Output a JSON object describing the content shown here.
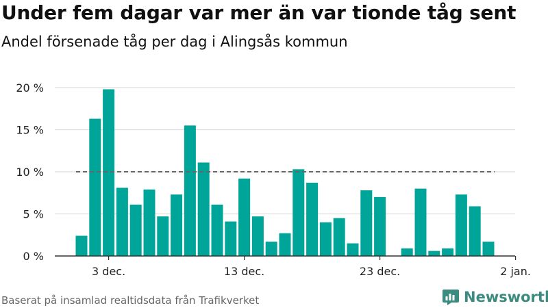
{
  "header": {
    "title": "Under fem dagar var mer än var tionde tåg sent",
    "subtitle": "Andel försenade tåg per dag i Alingsås kommun"
  },
  "footer": {
    "source": "Baserat på insamlad realtidsdata från Trafikverket",
    "brand": "Newsworthy"
  },
  "colors": {
    "bar": "#00a59a",
    "reference_line": "#666666",
    "grid": "#dddddd",
    "brand": "#3c8b80"
  },
  "chart_data": {
    "type": "bar",
    "x": [
      "1 dec.",
      "2 dec.",
      "3 dec.",
      "4 dec.",
      "5 dec.",
      "6 dec.",
      "7 dec.",
      "8 dec.",
      "9 dec.",
      "10 dec.",
      "11 dec.",
      "12 dec.",
      "13 dec.",
      "14 dec.",
      "15 dec.",
      "16 dec.",
      "17 dec.",
      "18 dec.",
      "19 dec.",
      "20 dec.",
      "21 dec.",
      "22 dec.",
      "23 dec.",
      "24 dec.",
      "25 dec.",
      "26 dec.",
      "27 dec.",
      "28 dec.",
      "29 dec.",
      "30 dec.",
      "31 dec."
    ],
    "values": [
      2.4,
      16.3,
      19.8,
      8.1,
      6.1,
      7.9,
      4.7,
      7.3,
      15.5,
      11.1,
      6.1,
      4.1,
      9.2,
      4.7,
      1.7,
      2.7,
      10.3,
      8.7,
      4.0,
      4.5,
      1.5,
      7.8,
      7.0,
      0,
      0.9,
      8.0,
      0.6,
      0.9,
      7.3,
      5.9,
      1.7
    ],
    "x_ticks": [
      "3 dec.",
      "13 dec.",
      "23 dec.",
      "2 jan."
    ],
    "y_ticks": [
      "0 %",
      "5 %",
      "10 %",
      "15 %",
      "20 %"
    ],
    "ylim": [
      0,
      20
    ],
    "reference_line": 10,
    "grid": true,
    "legend": "none"
  }
}
